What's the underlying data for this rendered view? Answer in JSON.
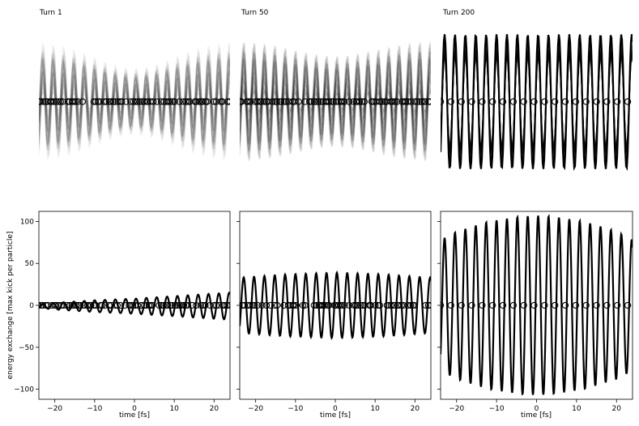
{
  "chart_data": [
    {
      "type": "line",
      "title": "Turn 1",
      "row": "top",
      "xlim": [
        -24,
        24
      ],
      "wave": {
        "period_fs": 2.6,
        "phase_fs": 0.4
      },
      "envelope": {
        "base": 0.82,
        "center_ratio": 0.55
      },
      "markers": {
        "y": 0,
        "style": "open-circle",
        "dense": true
      },
      "colors": {
        "line": "#000000",
        "marker": "#000000"
      }
    },
    {
      "type": "line",
      "title": "Turn 50",
      "row": "top",
      "xlim": [
        -24,
        24
      ],
      "wave": {
        "period_fs": 2.6,
        "phase_fs": 0.4
      },
      "envelope": {
        "base": 0.82,
        "center_ratio": 0.75
      },
      "markers": {
        "y": 0,
        "style": "open-circle",
        "dense": true
      },
      "colors": {
        "line": "#000000",
        "marker": "#000000"
      }
    },
    {
      "type": "line",
      "title": "Turn 200",
      "row": "top",
      "xlim": [
        -24,
        24
      ],
      "wave": {
        "period_fs": 2.6,
        "phase_fs": 0.4
      },
      "envelope": {
        "base": 0.9,
        "center_ratio": 1.0
      },
      "markers": {
        "y": 0,
        "style": "open-circle",
        "spacing_fs": 2.6,
        "start_fs": -24
      },
      "colors": {
        "line": "#000000",
        "marker": "#000000"
      }
    },
    {
      "type": "line",
      "row": "bottom",
      "xlabel": "time [fs]",
      "ylabel": "energy exchange [max kick per particle]",
      "xlim": [
        -24,
        24
      ],
      "ylim": [
        -112,
        112
      ],
      "xticks": [
        -20,
        -10,
        0,
        10,
        20
      ],
      "yticks": [
        -100,
        -50,
        0,
        50,
        100
      ],
      "series": [
        {
          "kind": "wave",
          "period_fs": 2.6,
          "phase_fs": 0.4,
          "amplitude_points": [
            [
              -24,
              2
            ],
            [
              -20,
              4
            ],
            [
              -10,
              7
            ],
            [
              0,
              9
            ],
            [
              10,
              12
            ],
            [
              20,
              15
            ],
            [
              24,
              16
            ]
          ],
          "y_offset": -1
        }
      ],
      "markers": {
        "y": 0,
        "style": "open-circle",
        "dense": true
      },
      "colors": {
        "line": "#000000",
        "marker": "#000000"
      }
    },
    {
      "type": "line",
      "row": "bottom",
      "xlabel": "time [fs]",
      "xlim": [
        -24,
        24
      ],
      "ylim": [
        -112,
        112
      ],
      "xticks": [
        -20,
        -10,
        0,
        10,
        20
      ],
      "yticks": [
        -100,
        -50,
        0,
        50,
        100
      ],
      "series": [
        {
          "kind": "wave",
          "period_fs": 2.6,
          "phase_fs": 0.4,
          "amplitude_points": [
            [
              -24,
              33
            ],
            [
              -12,
              37
            ],
            [
              0,
              39
            ],
            [
              12,
              37
            ],
            [
              24,
              33
            ]
          ],
          "y_offset": 0
        }
      ],
      "markers": {
        "y": 0,
        "style": "open-circle",
        "dense": true
      },
      "colors": {
        "line": "#000000",
        "marker": "#000000"
      }
    },
    {
      "type": "line",
      "row": "bottom",
      "xlabel": "time [fs]",
      "xlim": [
        -24,
        24
      ],
      "ylim": [
        -112,
        112
      ],
      "xticks": [
        -20,
        -10,
        0,
        10,
        20
      ],
      "yticks": [
        -100,
        -50,
        0,
        50,
        100
      ],
      "series": [
        {
          "kind": "wave",
          "period_fs": 2.6,
          "phase_fs": 0.4,
          "amplitude_points": [
            [
              -24,
              78
            ],
            [
              -20,
              88
            ],
            [
              -12,
              100
            ],
            [
              -4,
              106
            ],
            [
              0,
              107
            ],
            [
              4,
              106
            ],
            [
              12,
              100
            ],
            [
              20,
              88
            ],
            [
              24,
              78
            ]
          ],
          "y_offset": 0
        }
      ],
      "markers": {
        "y": 0,
        "style": "open-circle",
        "spacing_fs": 2.6,
        "start_fs": -24
      },
      "colors": {
        "line": "#000000",
        "marker": "#000000"
      }
    }
  ]
}
